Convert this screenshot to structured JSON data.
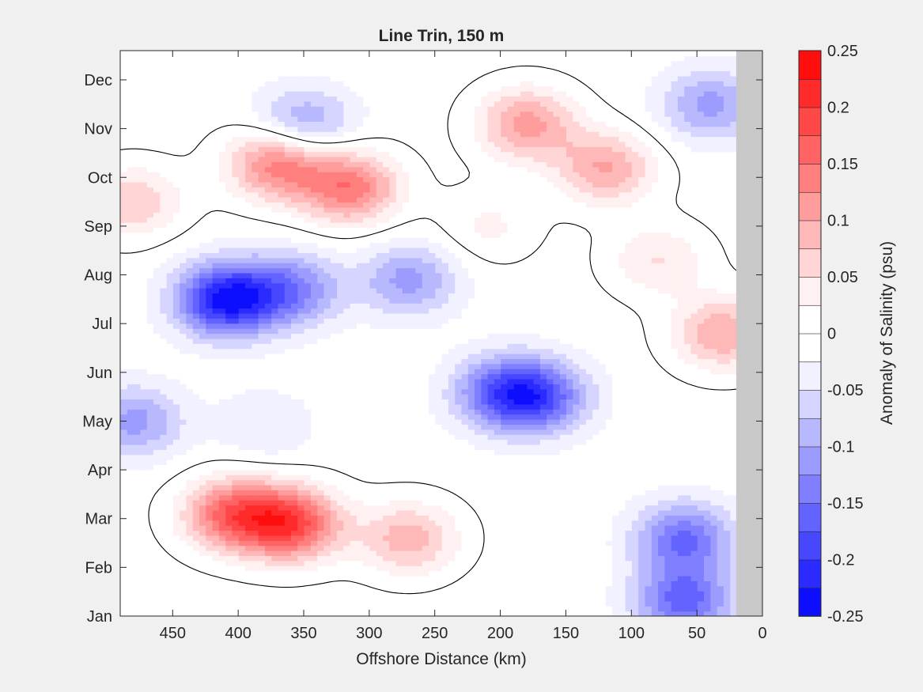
{
  "chart_data": {
    "type": "heatmap",
    "subtype": "filled-contour",
    "title": "Line Trin, 150 m",
    "xlabel": "Offshore Distance (km)",
    "ylabel": "",
    "x_reversed": true,
    "xlim": [
      0,
      490
    ],
    "x_ticks": [
      0,
      50,
      100,
      150,
      200,
      250,
      300,
      350,
      400,
      450
    ],
    "y_ticks": [
      "Jan",
      "Feb",
      "Mar",
      "Apr",
      "May",
      "Jun",
      "Jul",
      "Aug",
      "Sep",
      "Oct",
      "Nov",
      "Dec"
    ],
    "no_data_region_x": [
      0,
      20
    ],
    "colorbar": {
      "label": "Anomaly of Salinity (psu)",
      "range": [
        -0.25,
        0.25
      ],
      "step": 0.025,
      "tick_values": [
        0.25,
        0.2,
        0.15,
        0.1,
        0.05,
        0,
        -0.05,
        -0.1,
        -0.15,
        -0.2,
        -0.25
      ],
      "tick_labels": [
        "0.25",
        "0.2",
        "0.15",
        "0.1",
        "0.05",
        "0",
        "-0.05",
        "-0.1",
        "-0.15",
        "-0.2",
        "-0.25"
      ],
      "positive_color": "#ff0000",
      "negative_color": "#0000ff",
      "neutral_color": "#ffffff"
    },
    "zero_contour_color": "#000000",
    "background_nodata_color": "#c8c8c8",
    "features": [
      {
        "x": 410,
        "month": 7.5,
        "value": -0.22
      },
      {
        "x": 480,
        "month": 5.0,
        "value": -0.1
      },
      {
        "x": 360,
        "month": 7.7,
        "value": -0.12
      },
      {
        "x": 270,
        "month": 7.9,
        "value": -0.1
      },
      {
        "x": 200,
        "month": 5.6,
        "value": -0.13
      },
      {
        "x": 170,
        "month": 5.5,
        "value": -0.14
      },
      {
        "x": 380,
        "month": 4.9,
        "value": -0.04
      },
      {
        "x": 60,
        "month": 1.3,
        "value": -0.15
      },
      {
        "x": 60,
        "month": 2.6,
        "value": -0.14
      },
      {
        "x": 350,
        "month": 11.1,
        "value": -0.1
      },
      {
        "x": 40,
        "month": 11.5,
        "value": -0.1
      },
      {
        "x": 360,
        "month": 2.9,
        "value": 0.19
      },
      {
        "x": 405,
        "month": 3.1,
        "value": 0.16
      },
      {
        "x": 270,
        "month": 2.6,
        "value": 0.1
      },
      {
        "x": 370,
        "month": 10.3,
        "value": 0.15
      },
      {
        "x": 315,
        "month": 9.8,
        "value": 0.15
      },
      {
        "x": 480,
        "month": 9.5,
        "value": 0.08
      },
      {
        "x": 180,
        "month": 11.1,
        "value": 0.12
      },
      {
        "x": 120,
        "month": 10.2,
        "value": 0.11
      },
      {
        "x": 30,
        "month": 6.8,
        "value": 0.11
      },
      {
        "x": 210,
        "month": 9.0,
        "value": 0.04
      },
      {
        "x": 80,
        "month": 8.3,
        "value": 0.06
      }
    ],
    "background_value": -0.01
  }
}
